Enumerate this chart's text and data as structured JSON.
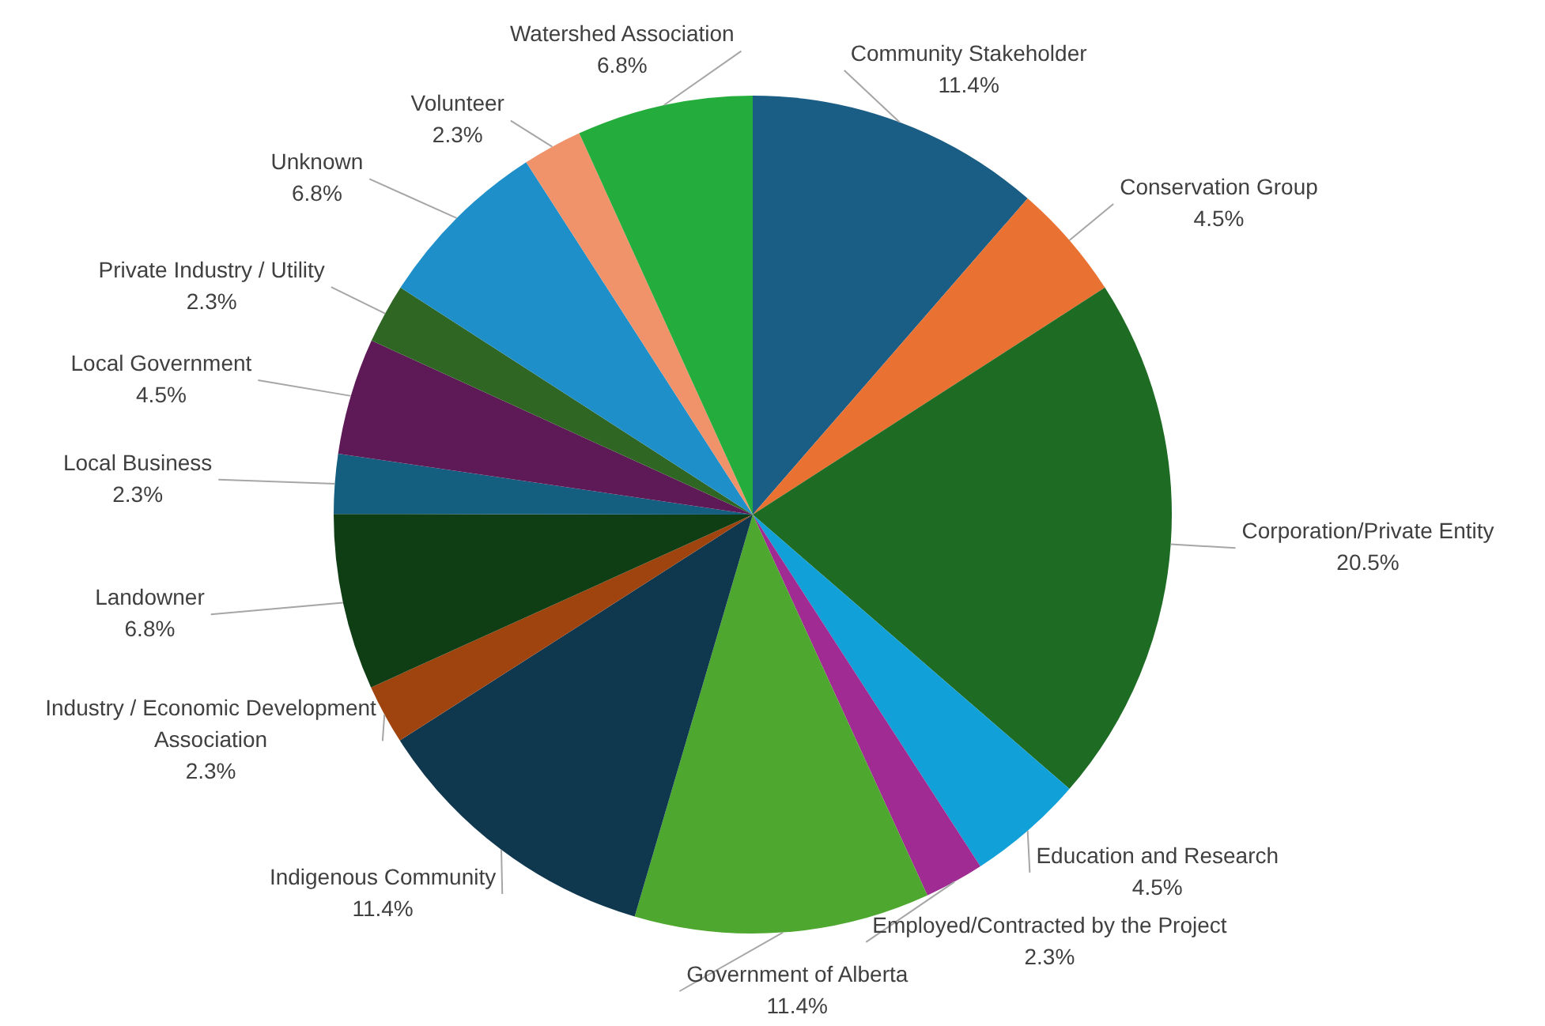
{
  "chart_data": {
    "type": "pie",
    "categories": [
      "Community Stakeholder",
      "Conservation Group",
      "Corporation/Private Entity",
      "Education and Research",
      "Employed/Contracted by the Project",
      "Government of Alberta",
      "Indigenous Community",
      "Industry / Economic Development Association",
      "Landowner",
      "Local Business",
      "Local Government",
      "Private Industry / Utility",
      "Unknown",
      "Volunteer",
      "Watershed Association"
    ],
    "values": [
      11.4,
      4.5,
      20.5,
      4.5,
      2.3,
      11.4,
      11.4,
      2.3,
      6.8,
      2.3,
      4.5,
      2.3,
      6.8,
      2.3,
      6.8
    ],
    "value_labels": [
      "11.4%",
      "4.5%",
      "20.5%",
      "4.5%",
      "2.3%",
      "11.4%",
      "11.4%",
      "2.3%",
      "6.8%",
      "2.3%",
      "4.5%",
      "2.3%",
      "6.8%",
      "2.3%",
      "6.8%"
    ],
    "colors": [
      "#1a5e85",
      "#e97132",
      "#1e6b24",
      "#12a0d8",
      "#a02b93",
      "#4ea72e",
      "#0f384f",
      "#a0440f",
      "#0f3d14",
      "#145e80",
      "#5e1a56",
      "#2f6624",
      "#1f8fca",
      "#f0936a",
      "#24ac3c"
    ],
    "legend": false
  }
}
